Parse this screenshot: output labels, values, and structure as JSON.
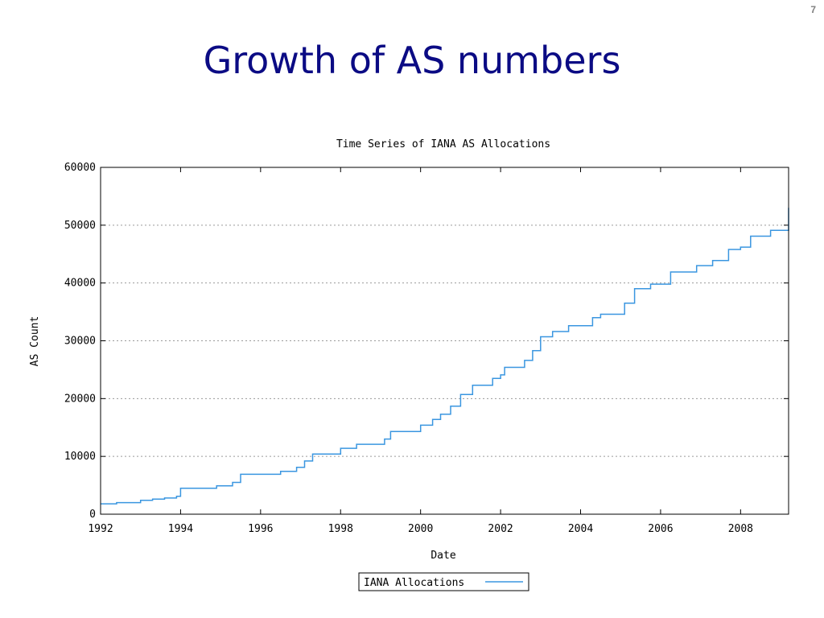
{
  "page_number": "7",
  "slide_title": "Growth of AS numbers",
  "chart_data": {
    "type": "line",
    "title": "Time Series of IANA AS Allocations",
    "xlabel": "Date",
    "ylabel": "AS Count",
    "xlim": [
      1992,
      2009.2
    ],
    "ylim": [
      0,
      60000
    ],
    "x_ticks": [
      "1992",
      "1994",
      "1996",
      "1998",
      "2000",
      "2002",
      "2004",
      "2006",
      "2008"
    ],
    "y_ticks": [
      "0",
      "10000",
      "20000",
      "30000",
      "40000",
      "50000",
      "60000"
    ],
    "grid": "horizontal dotted",
    "legend_position": "bottom-center",
    "line_color": "#3a96e0",
    "series": [
      {
        "name": "IANA Allocations",
        "x": [
          1992.0,
          1992.4,
          1993.0,
          1993.3,
          1993.6,
          1993.9,
          1994.0,
          1994.9,
          1995.3,
          1995.5,
          1996.5,
          1996.9,
          1997.1,
          1997.3,
          1998.0,
          1998.4,
          1999.1,
          1999.25,
          2000.0,
          2000.3,
          2000.5,
          2000.75,
          2001.0,
          2001.3,
          2001.8,
          2002.0,
          2002.1,
          2002.6,
          2002.8,
          2003.0,
          2003.3,
          2003.7,
          2004.3,
          2004.5,
          2005.1,
          2005.35,
          2005.75,
          2006.25,
          2006.9,
          2007.3,
          2007.7,
          2008.0,
          2008.25,
          2008.75,
          2009.2
        ],
        "y": [
          1800,
          2000,
          2400,
          2600,
          2800,
          3100,
          4500,
          4900,
          5500,
          6900,
          7400,
          8100,
          9200,
          10400,
          11400,
          12100,
          13000,
          14300,
          15400,
          16400,
          17300,
          18700,
          20700,
          22300,
          23500,
          24100,
          25400,
          26600,
          28300,
          30700,
          31600,
          32600,
          34000,
          34600,
          36500,
          39000,
          39800,
          41900,
          43000,
          43900,
          45800,
          46200,
          48100,
          49100,
          53000
        ]
      }
    ]
  }
}
